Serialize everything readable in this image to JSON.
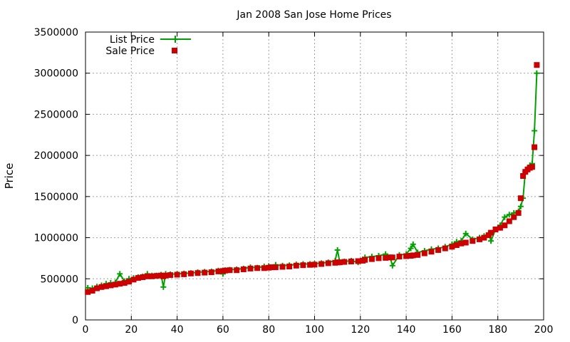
{
  "chart_data": {
    "type": "line",
    "title": "Jan 2008 San Jose Home Prices",
    "xlabel": "",
    "ylabel": "Price",
    "xlim": [
      0,
      200
    ],
    "ylim": [
      0,
      3500000
    ],
    "x_ticks": [
      0,
      20,
      40,
      60,
      80,
      100,
      120,
      140,
      160,
      180,
      200
    ],
    "y_ticks": [
      0,
      500000,
      1000000,
      1500000,
      2000000,
      2500000,
      3000000,
      3500000
    ],
    "grid": true,
    "legend_position": "top-left",
    "colors": {
      "list": "#00a000",
      "sale": "#cc0000"
    },
    "series": [
      {
        "name": "List Price",
        "style": "line-with-plus-markers",
        "x": [
          1,
          3,
          5,
          7,
          9,
          11,
          13,
          15,
          17,
          19,
          21,
          23,
          25,
          27,
          29,
          31,
          33,
          34,
          35,
          37,
          40,
          43,
          46,
          49,
          52,
          55,
          58,
          60,
          61,
          63,
          66,
          69,
          72,
          75,
          78,
          80,
          81,
          83,
          86,
          89,
          92,
          95,
          98,
          100,
          103,
          106,
          109,
          110,
          111,
          113,
          116,
          119,
          121,
          122,
          125,
          128,
          131,
          133,
          134,
          137,
          140,
          142,
          143,
          145,
          148,
          151,
          154,
          157,
          160,
          162,
          164,
          166,
          169,
          172,
          174,
          176,
          177,
          179,
          181,
          183,
          185,
          187,
          189,
          190,
          191,
          192,
          193,
          194,
          195,
          196,
          197
        ],
        "y": [
          390000,
          385000,
          405000,
          420000,
          440000,
          450000,
          455000,
          560000,
          470000,
          500000,
          510000,
          520000,
          530000,
          560000,
          540000,
          540000,
          550000,
          400000,
          560000,
          555000,
          560000,
          565000,
          570000,
          580000,
          585000,
          590000,
          600000,
          560000,
          605000,
          610000,
          615000,
          625000,
          640000,
          635000,
          650000,
          655000,
          640000,
          670000,
          660000,
          665000,
          675000,
          680000,
          680000,
          685000,
          690000,
          700000,
          720000,
          850000,
          700000,
          710000,
          720000,
          700000,
          735000,
          760000,
          770000,
          780000,
          800000,
          760000,
          660000,
          790000,
          800000,
          870000,
          920000,
          820000,
          840000,
          860000,
          870000,
          890000,
          920000,
          950000,
          960000,
          1050000,
          980000,
          1000000,
          1020000,
          1050000,
          960000,
          1100000,
          1150000,
          1250000,
          1280000,
          1300000,
          1320000,
          1380000,
          1480000,
          1800000,
          1840000,
          1880000,
          1900000,
          2300000,
          3000000
        ]
      },
      {
        "name": "Sale Price",
        "style": "square-markers",
        "x": [
          1,
          3,
          5,
          7,
          9,
          11,
          13,
          15,
          17,
          19,
          21,
          23,
          25,
          27,
          29,
          31,
          33,
          34,
          35,
          37,
          40,
          43,
          46,
          49,
          52,
          55,
          58,
          60,
          61,
          63,
          66,
          69,
          72,
          75,
          78,
          80,
          81,
          83,
          86,
          89,
          92,
          95,
          98,
          100,
          103,
          106,
          109,
          110,
          111,
          113,
          116,
          119,
          121,
          122,
          125,
          128,
          131,
          133,
          134,
          137,
          140,
          142,
          143,
          145,
          148,
          151,
          154,
          157,
          160,
          162,
          164,
          166,
          169,
          172,
          174,
          176,
          177,
          179,
          181,
          183,
          185,
          187,
          189,
          190,
          191,
          192,
          193,
          194,
          195,
          196,
          197
        ],
        "y": [
          340000,
          355000,
          385000,
          400000,
          410000,
          420000,
          430000,
          440000,
          450000,
          465000,
          490000,
          510000,
          520000,
          530000,
          530000,
          535000,
          540000,
          530000,
          540000,
          545000,
          550000,
          555000,
          565000,
          570000,
          575000,
          580000,
          590000,
          595000,
          600000,
          605000,
          605000,
          615000,
          625000,
          630000,
          630000,
          635000,
          640000,
          640000,
          645000,
          650000,
          660000,
          665000,
          670000,
          672000,
          680000,
          690000,
          695000,
          700000,
          700000,
          705000,
          710000,
          715000,
          720000,
          730000,
          740000,
          750000,
          755000,
          760000,
          760000,
          770000,
          775000,
          780000,
          785000,
          790000,
          810000,
          830000,
          850000,
          870000,
          890000,
          910000,
          930000,
          940000,
          960000,
          980000,
          1000000,
          1030000,
          1060000,
          1100000,
          1120000,
          1150000,
          1200000,
          1250000,
          1300000,
          1480000,
          1750000,
          1800000,
          1830000,
          1850000,
          1860000,
          2100000,
          3100000
        ]
      }
    ]
  }
}
